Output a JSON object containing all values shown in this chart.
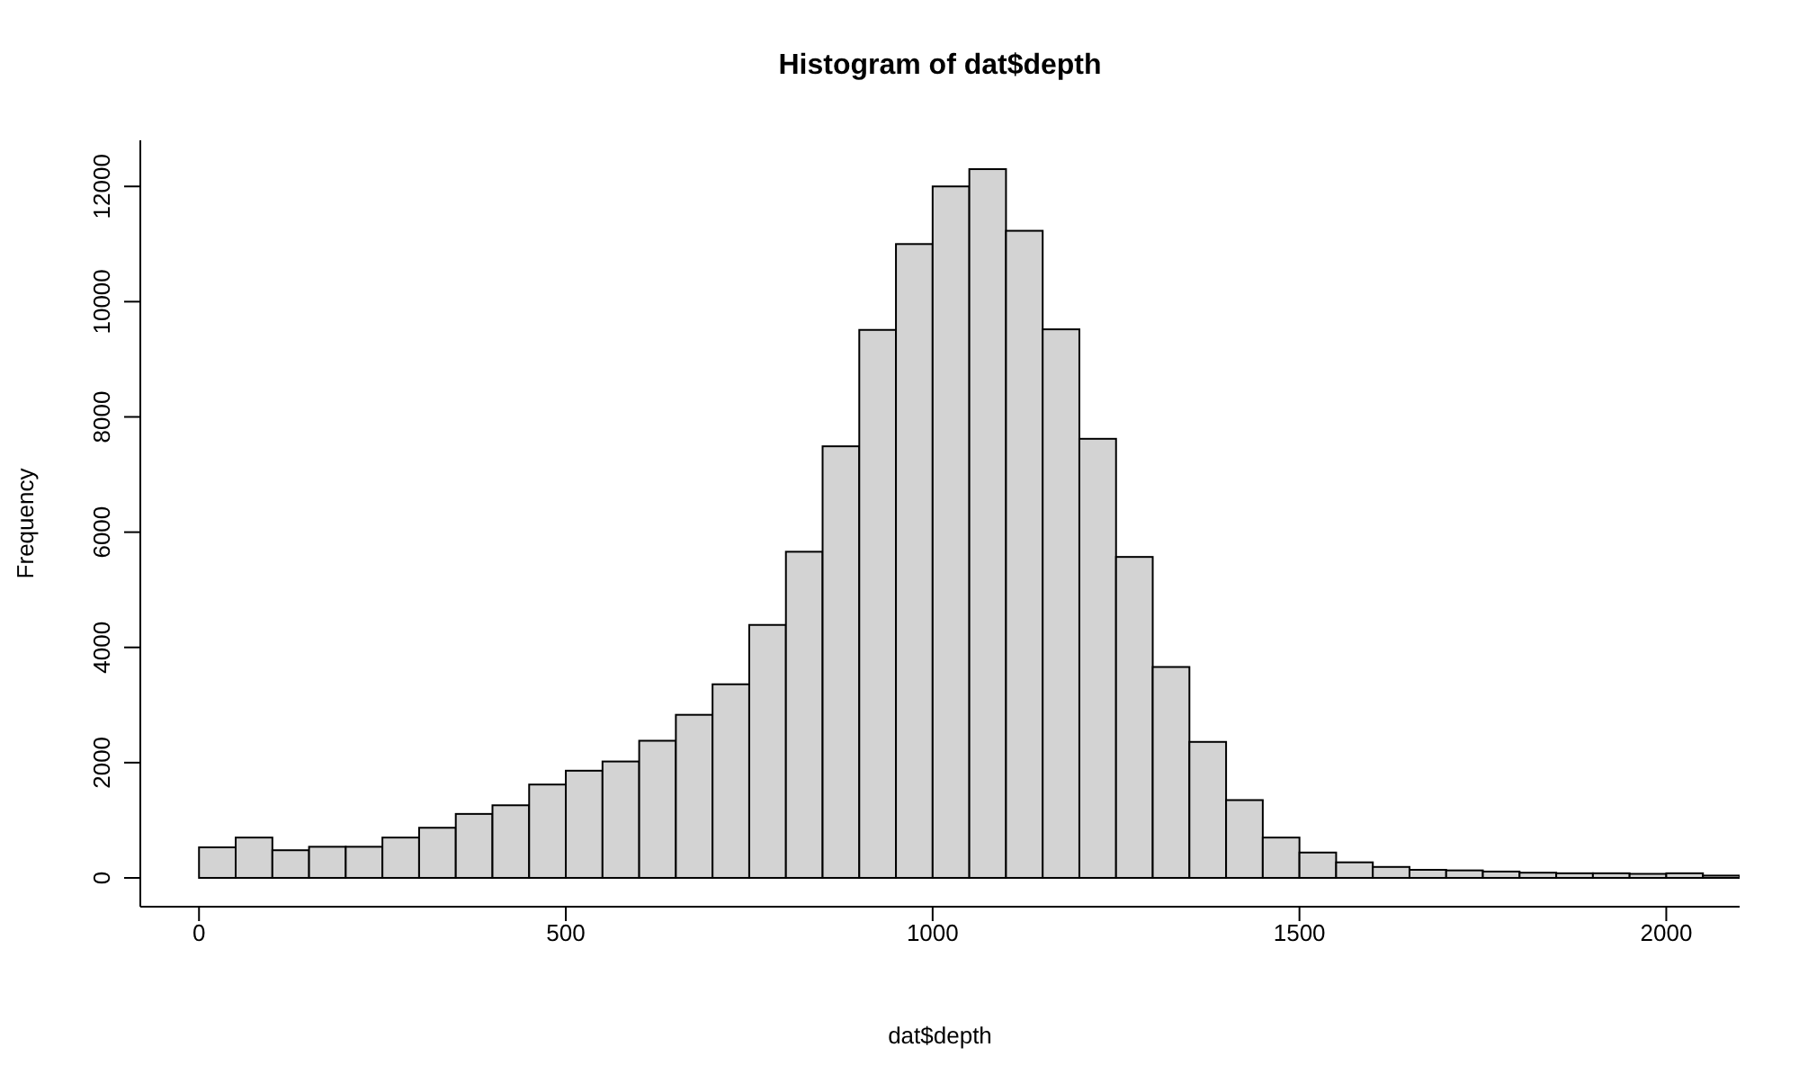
{
  "chart_data": {
    "type": "histogram",
    "title": "Histogram of dat$depth",
    "xlabel": "dat$depth",
    "ylabel": "Frequency",
    "bins": [
      0,
      50,
      100,
      150,
      200,
      250,
      300,
      350,
      400,
      450,
      500,
      550,
      600,
      650,
      700,
      750,
      800,
      850,
      900,
      950,
      1000,
      1050,
      1100,
      1150,
      1200,
      1250,
      1300,
      1350,
      1400,
      1450,
      1500,
      1550,
      1600,
      1650,
      1700,
      1750,
      1800,
      1850,
      1900,
      1950,
      2000,
      2050,
      2100
    ],
    "values": [
      530,
      700,
      480,
      540,
      540,
      700,
      870,
      1110,
      1260,
      1620,
      1860,
      2020,
      2380,
      2830,
      3360,
      4390,
      5660,
      7490,
      9510,
      11000,
      12000,
      12300,
      11230,
      9520,
      7620,
      5570,
      3660,
      2360,
      1350,
      700,
      440,
      270,
      190,
      140,
      130,
      110,
      90,
      80,
      80,
      70,
      80,
      40
    ],
    "color": "#d3d3d3",
    "xlim": [
      -80,
      2100
    ],
    "xticks": [
      0,
      500,
      1000,
      1500,
      2000
    ],
    "ylim": [
      -500,
      12800
    ],
    "yticks": [
      0,
      2000,
      4000,
      6000,
      8000,
      10000,
      12000
    ],
    "grid": false
  }
}
